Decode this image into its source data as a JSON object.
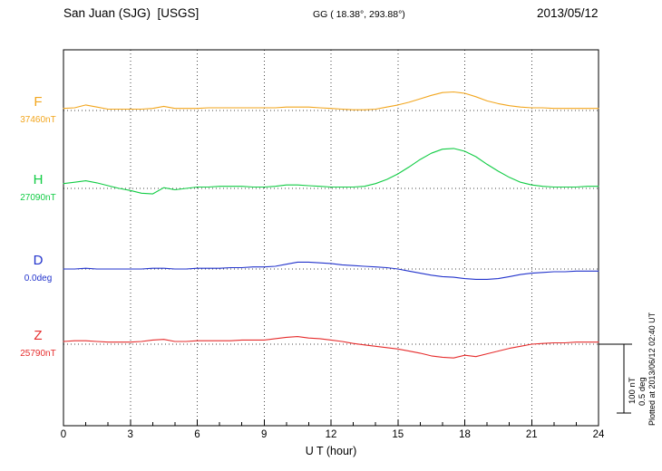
{
  "header": {
    "station_title": "San Juan (SJG)  [USGS]",
    "geographic_coords": "GG ( 18.38°, 293.88°)",
    "date": "2013/05/12"
  },
  "axis": {
    "xlabel": "U T (hour)"
  },
  "scale_bar": {
    "nt_label": "100 nT",
    "deg_label": "0.5 deg"
  },
  "plotted_note": "Plotted at 2013/06/12 02:40 UT",
  "colors": {
    "background": "#ffffff",
    "frame": "#000000",
    "grid": "#444444",
    "text": "#000000"
  },
  "chart_data": {
    "type": "line",
    "title": "San Juan (SJG) [USGS] magnetogram 2013/05/12",
    "xlabel": "U T (hour)",
    "x_unit": "hour",
    "x_range": [
      0,
      24
    ],
    "x_ticks": [
      0,
      3,
      6,
      9,
      12,
      15,
      18,
      21,
      24
    ],
    "x_start": 0,
    "x_step": 0.5,
    "grid": "dotted vertical lines at 3-hour intervals; dotted horizontal baseline per trace",
    "legend_position": "left",
    "scale": {
      "nT": 100,
      "deg": 0.5
    },
    "values_are": "offset from baseline_value in series units",
    "series": [
      {
        "name": "F",
        "units": "nT",
        "baseline_value": 37460,
        "baseline_label": "37460nT",
        "color": "#f2a61e",
        "values": [
          3,
          4,
          8,
          5,
          2,
          2,
          2,
          2,
          3,
          6,
          3,
          3,
          3,
          4,
          4,
          4,
          4,
          4,
          4,
          4,
          5,
          5,
          5,
          4,
          3,
          2,
          1,
          1,
          2,
          5,
          8,
          12,
          17,
          22,
          26,
          27,
          25,
          20,
          14,
          10,
          7,
          5,
          4,
          4,
          3,
          3,
          3,
          3,
          3
        ]
      },
      {
        "name": "H",
        "units": "nT",
        "baseline_value": 27090,
        "baseline_label": "27090nT",
        "color": "#11cc44",
        "values": [
          7,
          9,
          11,
          8,
          4,
          0,
          -3,
          -7,
          -8,
          1,
          -2,
          0,
          2,
          2,
          3,
          3,
          3,
          2,
          2,
          3,
          5,
          5,
          4,
          3,
          2,
          2,
          2,
          3,
          7,
          13,
          21,
          31,
          42,
          51,
          57,
          58,
          54,
          46,
          35,
          25,
          16,
          9,
          5,
          3,
          2,
          2,
          2,
          3,
          3
        ]
      },
      {
        "name": "D",
        "units": "deg",
        "baseline_value": 0.0,
        "baseline_label": "0.0deg",
        "color": "#2233cc",
        "values": [
          0,
          0,
          0.005,
          0,
          0,
          0,
          0,
          0,
          0.005,
          0.005,
          0,
          0,
          0.005,
          0.005,
          0.005,
          0.01,
          0.01,
          0.015,
          0.015,
          0.02,
          0.035,
          0.05,
          0.05,
          0.045,
          0.04,
          0.03,
          0.025,
          0.02,
          0.015,
          0.01,
          0,
          -0.015,
          -0.03,
          -0.045,
          -0.055,
          -0.06,
          -0.07,
          -0.075,
          -0.075,
          -0.07,
          -0.055,
          -0.04,
          -0.03,
          -0.025,
          -0.02,
          -0.02,
          -0.015,
          -0.015,
          -0.015
        ]
      },
      {
        "name": "Z",
        "units": "nT",
        "baseline_value": 25790,
        "baseline_label": "25790nT",
        "color": "#e62c2c",
        "values": [
          4,
          5,
          5,
          4,
          3,
          3,
          3,
          4,
          6,
          7,
          4,
          4,
          5,
          5,
          5,
          5,
          6,
          6,
          6,
          8,
          10,
          11,
          9,
          8,
          6,
          4,
          1,
          -1,
          -3,
          -5,
          -7,
          -10,
          -13,
          -17,
          -19,
          -20,
          -16,
          -18,
          -14,
          -10,
          -6,
          -3,
          0,
          1,
          2,
          2,
          3,
          3,
          3
        ]
      }
    ]
  }
}
